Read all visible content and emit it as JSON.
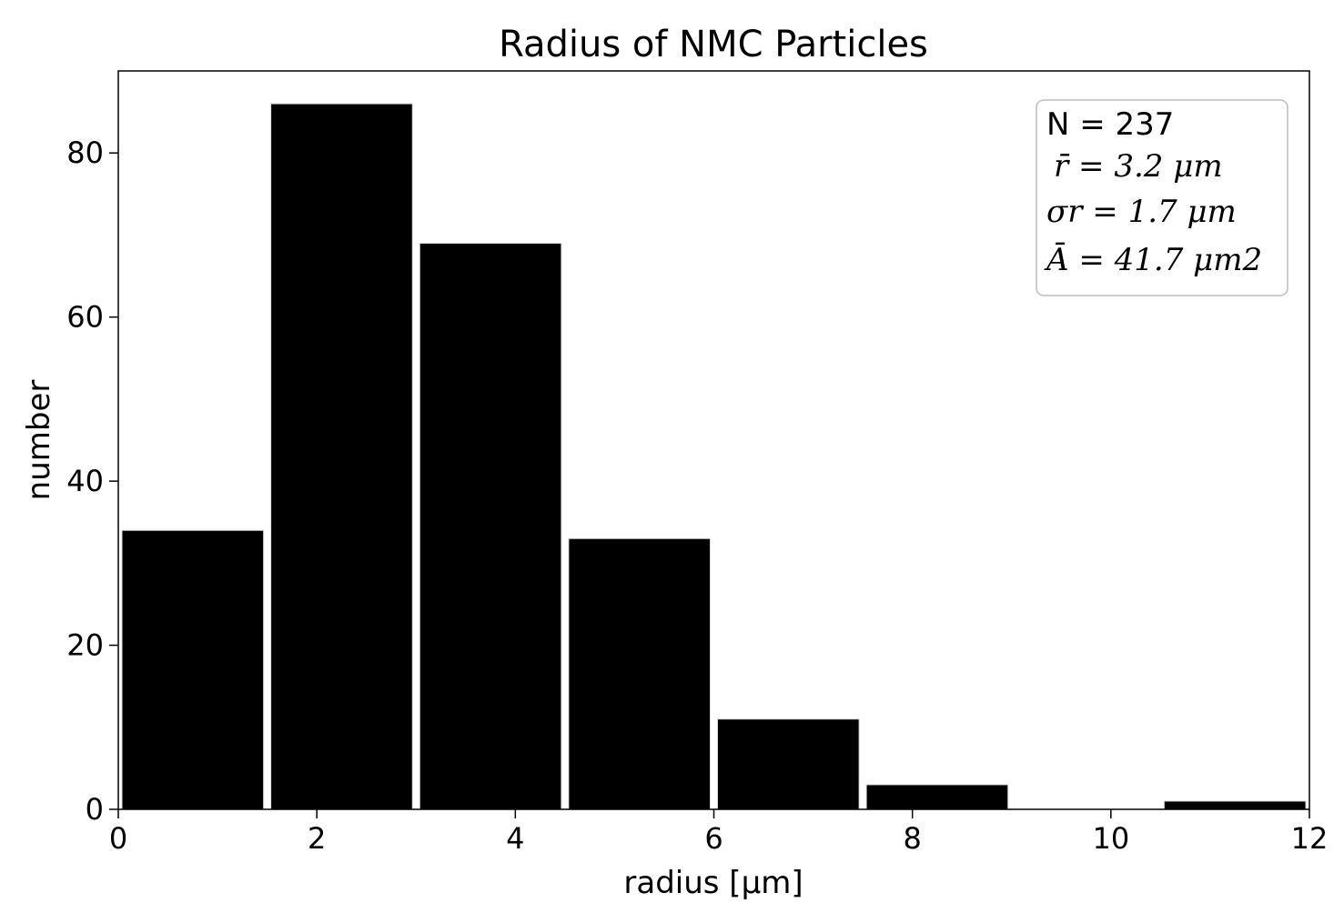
{
  "chart_data": {
    "type": "bar",
    "title": "Radius of NMC Particles",
    "xlabel": "radius [μm]",
    "ylabel": "number",
    "xlim": [
      0,
      12
    ],
    "ylim": [
      0,
      90
    ],
    "xticks": [
      "0",
      "2",
      "4",
      "6",
      "8",
      "10",
      "12"
    ],
    "yticks": [
      "0",
      "20",
      "40",
      "60",
      "80"
    ],
    "grid": false,
    "bins": [
      {
        "x0": 0.0,
        "x1": 1.5,
        "value": 34
      },
      {
        "x0": 1.5,
        "x1": 3.0,
        "value": 86
      },
      {
        "x0": 3.0,
        "x1": 4.5,
        "value": 69
      },
      {
        "x0": 4.5,
        "x1": 6.0,
        "value": 33
      },
      {
        "x0": 6.0,
        "x1": 7.5,
        "value": 11
      },
      {
        "x0": 7.5,
        "x1": 9.0,
        "value": 3
      },
      {
        "x0": 9.0,
        "x1": 10.5,
        "value": 0
      },
      {
        "x0": 10.5,
        "x1": 12.0,
        "value": 1
      }
    ],
    "bar_color": "#000000",
    "bar_edge_color": "#ffffff",
    "annotation": {
      "placement": "top-right",
      "lines": [
        {
          "text": "N = 237"
        },
        {
          "text": "r̄ = 3.2 μm"
        },
        {
          "text": "σr = 1.7 μm"
        },
        {
          "text": "Ā = 41.7 μm2"
        }
      ]
    }
  }
}
